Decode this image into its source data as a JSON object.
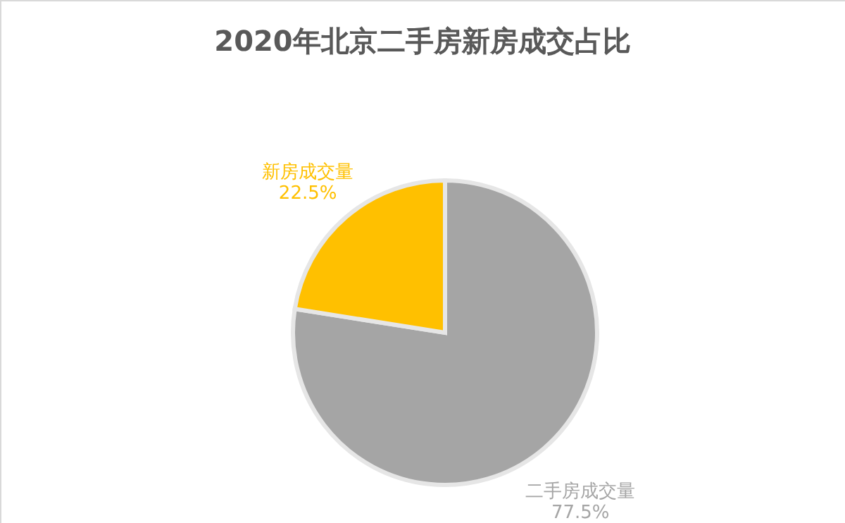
{
  "chart_data": {
    "type": "pie",
    "title": "2020年北京二手房新房成交占比",
    "categories": [
      "二手房成交量",
      "新房成交量"
    ],
    "values": [
      77.5,
      22.5
    ],
    "colors": [
      "#a5a5a5",
      "#ffc000"
    ],
    "value_labels": [
      "77.5%",
      "22.5%"
    ]
  }
}
